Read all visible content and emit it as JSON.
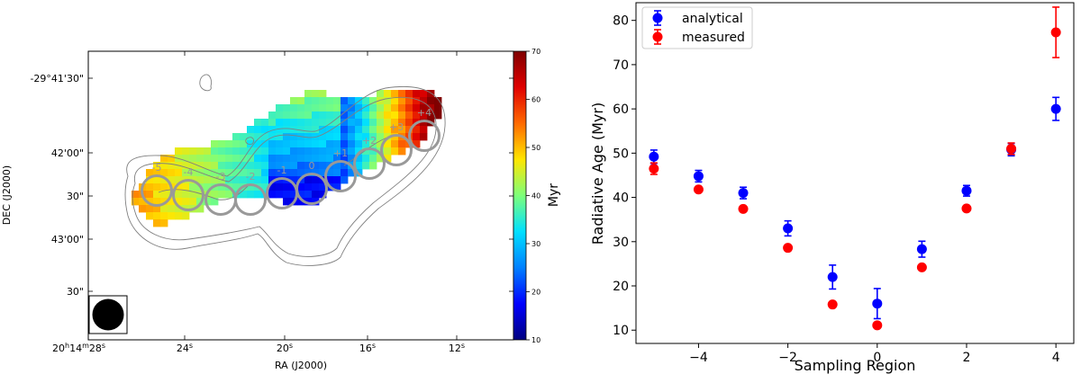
{
  "colors": {
    "analytical": "#0000ff",
    "measured": "#ff0000",
    "region_circle": "#999999",
    "contour": "#808080",
    "colormap": [
      "#00007f",
      "#0000ff",
      "#0080ff",
      "#00e0ff",
      "#7dff7a",
      "#ffe600",
      "#ff6a00",
      "#e00000",
      "#7f0000"
    ]
  },
  "left_panel": {
    "xlabel": "RA (J2000)",
    "ylabel": "DEC (J2000)",
    "x_ticks": [
      {
        "main": "20",
        "h": "h",
        "m_val": "14",
        "m": "m",
        "s_val": "28",
        "s": "s"
      },
      {
        "main": "24",
        "s": "s"
      },
      {
        "main": "20",
        "s": "s"
      },
      {
        "main": "16",
        "s": "s"
      },
      {
        "main": "12",
        "s": "s"
      }
    ],
    "y_ticks": [
      "-29°41'30\"",
      "42'00\"",
      "30\"",
      "43'00\"",
      "30\""
    ],
    "colorbar": {
      "label": "Myr",
      "range": [
        10,
        70
      ],
      "ticks": [
        "10",
        "20",
        "30",
        "40",
        "50",
        "60",
        "70"
      ]
    },
    "region_labels": [
      "-5",
      "-4",
      "-3",
      "-2",
      "-1",
      "0",
      "+1",
      "+2",
      "+3",
      "+4"
    ]
  },
  "chart_data": {
    "type": "scatter",
    "title": "",
    "xlabel": "Sampling Region",
    "ylabel": "Radiative Age (Myr)",
    "xlim": [
      -5.4,
      4.4
    ],
    "ylim": [
      7,
      84
    ],
    "x_ticks": [
      -4,
      -2,
      0,
      2,
      4
    ],
    "y_ticks": [
      10,
      20,
      30,
      40,
      50,
      60,
      70,
      80
    ],
    "legend_position": "top-left",
    "x": [
      -5,
      -4,
      -3,
      -2,
      -1,
      0,
      1,
      2,
      3,
      4
    ],
    "series": [
      {
        "name": "analytical",
        "color": "#0000ff",
        "values": [
          49.2,
          44.8,
          41.0,
          33.0,
          22.0,
          16.0,
          28.3,
          41.5,
          50.8,
          60.0
        ],
        "errors": [
          1.5,
          1.3,
          1.3,
          1.7,
          2.7,
          3.4,
          1.8,
          1.2,
          1.4,
          2.6
        ]
      },
      {
        "name": "measured",
        "color": "#ff0000",
        "values": [
          46.5,
          41.8,
          37.4,
          28.6,
          15.8,
          11.1,
          24.2,
          37.5,
          51.0,
          77.3
        ],
        "errors": [
          1.3,
          0,
          0,
          0,
          0,
          0,
          0,
          0,
          1.3,
          5.7
        ]
      }
    ]
  }
}
